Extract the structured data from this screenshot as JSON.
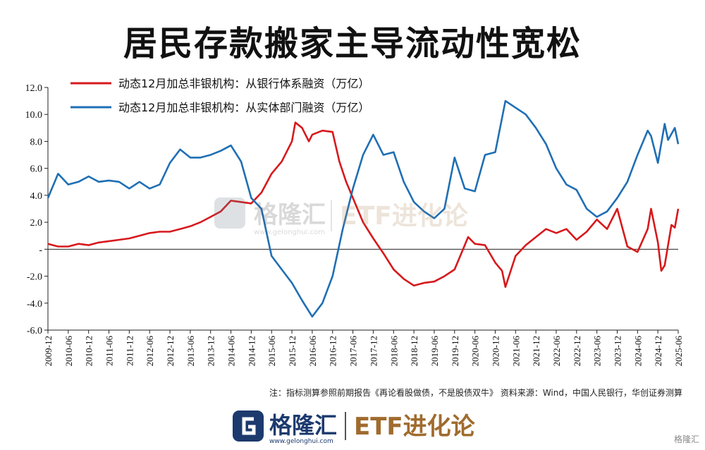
{
  "title": "居民存款搬家主导流动性宽松",
  "note": "注：指标测算参照前期报告《再论看股做债，不是股债双牛》 资料来源：Wind，中国人民银行，华创证券测算",
  "watermark": {
    "brand": "格隆汇",
    "site": "www.gelonghui.com",
    "product": "ETF进化论"
  },
  "footer": {
    "brand": "格隆汇",
    "site": "www.gelonghui.com",
    "product": "ETF进化论"
  },
  "corner_mark": "格隆汇",
  "colors": {
    "red": "#d7191c",
    "blue": "#1f6fb4",
    "axis": "#222222"
  },
  "chart_data": {
    "type": "line",
    "ylim": [
      -6.0,
      12.0
    ],
    "yticks": [
      {
        "v": 12.0,
        "label": "12.0"
      },
      {
        "v": 10.0,
        "label": "10.0"
      },
      {
        "v": 8.0,
        "label": "8.0"
      },
      {
        "v": 6.0,
        "label": "6.0"
      },
      {
        "v": 4.0,
        "label": "4.0"
      },
      {
        "v": 2.0,
        "label": "2.0"
      },
      {
        "v": 0.0,
        "label": "-"
      },
      {
        "v": -2.0,
        "label": "-2.0"
      },
      {
        "v": -4.0,
        "label": "-4.0"
      },
      {
        "v": -6.0,
        "label": "-6.0"
      }
    ],
    "xlim": [
      "2009-12",
      "2025-06"
    ],
    "xticks": [
      "2009-12",
      "2010-06",
      "2010-12",
      "2011-06",
      "2011-12",
      "2012-06",
      "2012-12",
      "2013-06",
      "2013-12",
      "2014-06",
      "2014-12",
      "2015-06",
      "2015-12",
      "2016-06",
      "2016-12",
      "2017-06",
      "2017-12",
      "2018-06",
      "2018-12",
      "2019-06",
      "2019-12",
      "2020-06",
      "2020-12",
      "2021-06",
      "2021-12",
      "2022-06",
      "2022-12",
      "2023-06",
      "2023-12",
      "2024-06",
      "2024-12",
      "2025-06"
    ],
    "legend_position": "top-left",
    "series": [
      {
        "name": "动态12月加总非银机构：从银行体系融资（万亿）",
        "color": "#d7191c",
        "points": [
          [
            "2009-12",
            0.4
          ],
          [
            "2010-03",
            0.2
          ],
          [
            "2010-06",
            0.2
          ],
          [
            "2010-09",
            0.4
          ],
          [
            "2010-12",
            0.3
          ],
          [
            "2011-03",
            0.5
          ],
          [
            "2011-06",
            0.6
          ],
          [
            "2011-09",
            0.7
          ],
          [
            "2011-12",
            0.8
          ],
          [
            "2012-03",
            1.0
          ],
          [
            "2012-06",
            1.2
          ],
          [
            "2012-09",
            1.3
          ],
          [
            "2012-12",
            1.3
          ],
          [
            "2013-03",
            1.5
          ],
          [
            "2013-06",
            1.7
          ],
          [
            "2013-09",
            2.0
          ],
          [
            "2013-12",
            2.4
          ],
          [
            "2014-03",
            2.8
          ],
          [
            "2014-06",
            3.6
          ],
          [
            "2014-09",
            3.5
          ],
          [
            "2014-12",
            3.4
          ],
          [
            "2015-03",
            4.2
          ],
          [
            "2015-06",
            5.6
          ],
          [
            "2015-09",
            6.5
          ],
          [
            "2015-12",
            8.0
          ],
          [
            "2016-01",
            9.4
          ],
          [
            "2016-03",
            9.0
          ],
          [
            "2016-05",
            8.0
          ],
          [
            "2016-06",
            8.5
          ],
          [
            "2016-09",
            8.8
          ],
          [
            "2016-12",
            8.7
          ],
          [
            "2017-02",
            6.5
          ],
          [
            "2017-04",
            5.0
          ],
          [
            "2017-06",
            3.8
          ],
          [
            "2017-09",
            2.0
          ],
          [
            "2017-12",
            0.8
          ],
          [
            "2018-03",
            -0.3
          ],
          [
            "2018-06",
            -1.5
          ],
          [
            "2018-09",
            -2.2
          ],
          [
            "2018-12",
            -2.7
          ],
          [
            "2019-03",
            -2.5
          ],
          [
            "2019-06",
            -2.4
          ],
          [
            "2019-09",
            -2.0
          ],
          [
            "2019-12",
            -1.5
          ],
          [
            "2020-02",
            -0.3
          ],
          [
            "2020-04",
            0.9
          ],
          [
            "2020-06",
            0.4
          ],
          [
            "2020-09",
            0.3
          ],
          [
            "2020-12",
            -1.0
          ],
          [
            "2021-02",
            -1.6
          ],
          [
            "2021-03",
            -2.8
          ],
          [
            "2021-06",
            -0.5
          ],
          [
            "2021-09",
            0.3
          ],
          [
            "2021-12",
            0.9
          ],
          [
            "2022-03",
            1.5
          ],
          [
            "2022-06",
            1.2
          ],
          [
            "2022-09",
            1.5
          ],
          [
            "2022-12",
            0.7
          ],
          [
            "2023-03",
            1.3
          ],
          [
            "2023-06",
            2.2
          ],
          [
            "2023-09",
            1.5
          ],
          [
            "2023-12",
            3.0
          ],
          [
            "2024-03",
            0.2
          ],
          [
            "2024-06",
            -0.2
          ],
          [
            "2024-09",
            1.5
          ],
          [
            "2024-10",
            3.0
          ],
          [
            "2024-12",
            0.5
          ],
          [
            "2025-01",
            -1.6
          ],
          [
            "2025-02",
            -1.2
          ],
          [
            "2025-04",
            1.8
          ],
          [
            "2025-05",
            1.6
          ],
          [
            "2025-06",
            3.0
          ]
        ]
      },
      {
        "name": "动态12月加总非银机构：从实体部门融资（万亿）",
        "color": "#1f6fb4",
        "points": [
          [
            "2009-12",
            3.8
          ],
          [
            "2010-03",
            5.6
          ],
          [
            "2010-06",
            4.8
          ],
          [
            "2010-09",
            5.0
          ],
          [
            "2010-12",
            5.4
          ],
          [
            "2011-03",
            5.0
          ],
          [
            "2011-06",
            5.1
          ],
          [
            "2011-09",
            5.0
          ],
          [
            "2011-12",
            4.5
          ],
          [
            "2012-03",
            5.0
          ],
          [
            "2012-06",
            4.5
          ],
          [
            "2012-09",
            4.8
          ],
          [
            "2012-12",
            6.4
          ],
          [
            "2013-03",
            7.4
          ],
          [
            "2013-06",
            6.8
          ],
          [
            "2013-09",
            6.8
          ],
          [
            "2013-12",
            7.0
          ],
          [
            "2014-03",
            7.3
          ],
          [
            "2014-06",
            7.7
          ],
          [
            "2014-09",
            6.5
          ],
          [
            "2014-12",
            3.8
          ],
          [
            "2015-03",
            3.0
          ],
          [
            "2015-06",
            -0.5
          ],
          [
            "2015-09",
            -1.5
          ],
          [
            "2015-12",
            -2.5
          ],
          [
            "2016-03",
            -3.8
          ],
          [
            "2016-06",
            -5.0
          ],
          [
            "2016-09",
            -4.0
          ],
          [
            "2016-12",
            -2.0
          ],
          [
            "2017-03",
            1.5
          ],
          [
            "2017-06",
            4.5
          ],
          [
            "2017-09",
            7.0
          ],
          [
            "2017-12",
            8.5
          ],
          [
            "2018-03",
            7.0
          ],
          [
            "2018-06",
            7.2
          ],
          [
            "2018-09",
            5.0
          ],
          [
            "2018-12",
            3.5
          ],
          [
            "2019-03",
            2.8
          ],
          [
            "2019-06",
            2.3
          ],
          [
            "2019-09",
            3.0
          ],
          [
            "2019-12",
            6.8
          ],
          [
            "2020-03",
            4.5
          ],
          [
            "2020-06",
            4.3
          ],
          [
            "2020-09",
            7.0
          ],
          [
            "2020-12",
            7.2
          ],
          [
            "2021-03",
            11.0
          ],
          [
            "2021-06",
            10.5
          ],
          [
            "2021-09",
            10.0
          ],
          [
            "2021-12",
            9.0
          ],
          [
            "2022-03",
            7.8
          ],
          [
            "2022-06",
            6.0
          ],
          [
            "2022-09",
            4.8
          ],
          [
            "2022-12",
            4.4
          ],
          [
            "2023-03",
            3.0
          ],
          [
            "2023-06",
            2.4
          ],
          [
            "2023-09",
            2.8
          ],
          [
            "2023-12",
            3.8
          ],
          [
            "2024-03",
            5.0
          ],
          [
            "2024-06",
            7.0
          ],
          [
            "2024-09",
            8.8
          ],
          [
            "2024-10",
            8.4
          ],
          [
            "2024-12",
            6.4
          ],
          [
            "2025-02",
            9.3
          ],
          [
            "2025-03",
            8.1
          ],
          [
            "2025-05",
            9.0
          ],
          [
            "2025-06",
            7.8
          ]
        ]
      }
    ]
  }
}
